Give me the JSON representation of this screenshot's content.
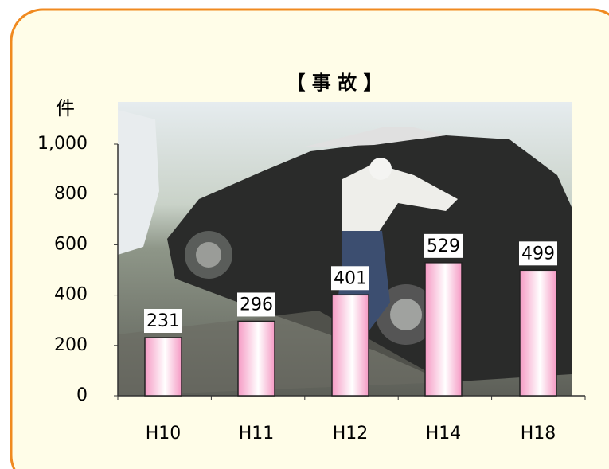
{
  "chart_data": {
    "type": "bar",
    "title": "【 事 故 】",
    "y_label": "件",
    "categories": [
      "H10",
      "H11",
      "H12",
      "H14",
      "H18"
    ],
    "values": [
      231,
      296,
      401,
      529,
      499
    ],
    "color": "#f59ac4",
    "ylim": [
      0,
      1000
    ],
    "yticks": [
      0,
      200,
      400,
      600,
      800,
      {
        "value": 1000,
        "label": "1,000"
      }
    ]
  }
}
